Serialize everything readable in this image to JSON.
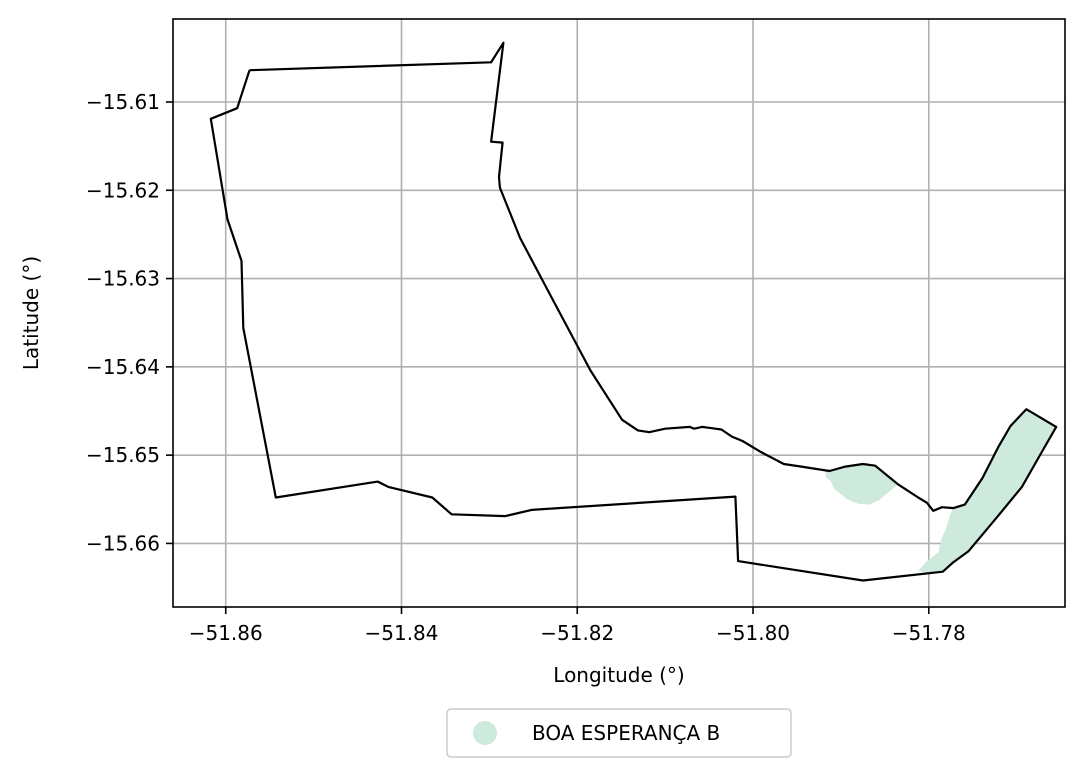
{
  "chart_data": {
    "type": "map",
    "xlabel": "Longitude (°)",
    "ylabel": "Latitude (°)",
    "xlim": [
      -51.866,
      -51.7645
    ],
    "ylim": [
      -15.6672,
      -15.6006
    ],
    "grid": true,
    "xticks": [
      -51.86,
      -51.84,
      -51.82,
      -51.8,
      -51.78
    ],
    "xtick_labels": [
      "−51.86",
      "−51.84",
      "−51.82",
      "−51.80",
      "−51.78"
    ],
    "yticks": [
      -15.61,
      -15.62,
      -15.63,
      -15.64,
      -15.65,
      -15.66
    ],
    "ytick_labels": [
      "−15.61",
      "−15.62",
      "−15.63",
      "−15.64",
      "−15.65",
      "−15.66"
    ],
    "boundary": {
      "color": "#000000",
      "coordinates": [
        [
          -51.8573,
          -15.6064
        ],
        [
          -51.8298,
          -15.6055
        ],
        [
          -51.8284,
          -15.6033
        ],
        [
          -51.8298,
          -15.6145
        ],
        [
          -51.8285,
          -15.6146
        ],
        [
          -51.8287,
          -15.6165
        ],
        [
          -51.8289,
          -15.6185
        ],
        [
          -51.8288,
          -15.6197
        ],
        [
          -51.8265,
          -15.6254
        ],
        [
          -51.8231,
          -15.6318
        ],
        [
          -51.8185,
          -15.6404
        ],
        [
          -51.8149,
          -15.646
        ],
        [
          -51.8131,
          -15.6472
        ],
        [
          -51.8118,
          -15.6474
        ],
        [
          -51.81,
          -15.647
        ],
        [
          -51.8072,
          -15.6468
        ],
        [
          -51.8067,
          -15.647
        ],
        [
          -51.8058,
          -15.6468
        ],
        [
          -51.805,
          -15.6469
        ],
        [
          -51.8036,
          -15.6471
        ],
        [
          -51.8024,
          -15.6479
        ],
        [
          -51.8012,
          -15.6484
        ],
        [
          -51.7992,
          -15.6496
        ],
        [
          -51.7965,
          -15.651
        ],
        [
          -51.7945,
          -15.6513
        ],
        [
          -51.7913,
          -15.6518
        ],
        [
          -51.7895,
          -15.6513
        ],
        [
          -51.7875,
          -15.651
        ],
        [
          -51.7861,
          -15.6512
        ],
        [
          -51.7835,
          -15.6533
        ],
        [
          -51.7812,
          -15.6548
        ],
        [
          -51.7802,
          -15.6554
        ],
        [
          -51.7795,
          -15.6563
        ],
        [
          -51.7785,
          -15.6559
        ],
        [
          -51.7772,
          -15.656
        ],
        [
          -51.7759,
          -15.6556
        ],
        [
          -51.7739,
          -15.6526
        ],
        [
          -51.7721,
          -15.6491
        ],
        [
          -51.7707,
          -15.6467
        ],
        [
          -51.7689,
          -15.6448
        ],
        [
          -51.7655,
          -15.6468
        ],
        [
          -51.7674,
          -15.6501
        ],
        [
          -51.7694,
          -15.6536
        ],
        [
          -51.7723,
          -15.6571
        ],
        [
          -51.7755,
          -15.6609
        ],
        [
          -51.7773,
          -15.6622
        ],
        [
          -51.7784,
          -15.6632
        ],
        [
          -51.7875,
          -15.6642
        ],
        [
          -51.8017,
          -15.662
        ],
        [
          -51.802,
          -15.6547
        ],
        [
          -51.8252,
          -15.6562
        ],
        [
          -51.8282,
          -15.6569
        ],
        [
          -51.8343,
          -15.6567
        ],
        [
          -51.8365,
          -15.6548
        ],
        [
          -51.8415,
          -15.6536
        ],
        [
          -51.8427,
          -15.653
        ],
        [
          -51.8543,
          -15.6548
        ],
        [
          -51.858,
          -15.6356
        ],
        [
          -51.8582,
          -15.628
        ],
        [
          -51.8598,
          -15.6233
        ],
        [
          -51.8617,
          -15.6119
        ],
        [
          -51.8587,
          -15.6107
        ],
        [
          -51.8573,
          -15.6064
        ]
      ]
    },
    "features": [
      {
        "name": "BOA ESPERANÇA B",
        "color": "#cdeadc",
        "polygons": [
          [
            [
              -51.7918,
              -15.6518
            ],
            [
              -51.7895,
              -15.6513
            ],
            [
              -51.7875,
              -15.651
            ],
            [
              -51.7861,
              -15.6512
            ],
            [
              -51.7848,
              -15.6522
            ],
            [
              -51.7835,
              -15.6533
            ],
            [
              -51.7857,
              -15.6551
            ],
            [
              -51.7868,
              -15.6556
            ],
            [
              -51.788,
              -15.6555
            ],
            [
              -51.7893,
              -15.655
            ],
            [
              -51.79,
              -15.6544
            ],
            [
              -51.7908,
              -15.6538
            ],
            [
              -51.7911,
              -15.653
            ],
            [
              -51.7917,
              -15.6525
            ]
          ],
          [
            [
              -51.7689,
              -15.6448
            ],
            [
              -51.7655,
              -15.6468
            ],
            [
              -51.7674,
              -15.6501
            ],
            [
              -51.7694,
              -15.6536
            ],
            [
              -51.7723,
              -15.6571
            ],
            [
              -51.7755,
              -15.6609
            ],
            [
              -51.7773,
              -15.6622
            ],
            [
              -51.7784,
              -15.6632
            ],
            [
              -51.78,
              -15.6634
            ],
            [
              -51.7812,
              -15.6631
            ],
            [
              -51.7802,
              -15.662
            ],
            [
              -51.7789,
              -15.661
            ],
            [
              -51.7786,
              -15.6596
            ],
            [
              -51.778,
              -15.6582
            ],
            [
              -51.7776,
              -15.6568
            ],
            [
              -51.7772,
              -15.656
            ],
            [
              -51.7759,
              -15.6556
            ],
            [
              -51.7739,
              -15.6526
            ],
            [
              -51.7721,
              -15.6491
            ],
            [
              -51.7707,
              -15.6467
            ]
          ]
        ]
      }
    ],
    "legend": {
      "placement": "bottom-center",
      "items": [
        {
          "label": "BOA ESPERANÇA B",
          "color": "#cdeadc"
        }
      ]
    }
  }
}
